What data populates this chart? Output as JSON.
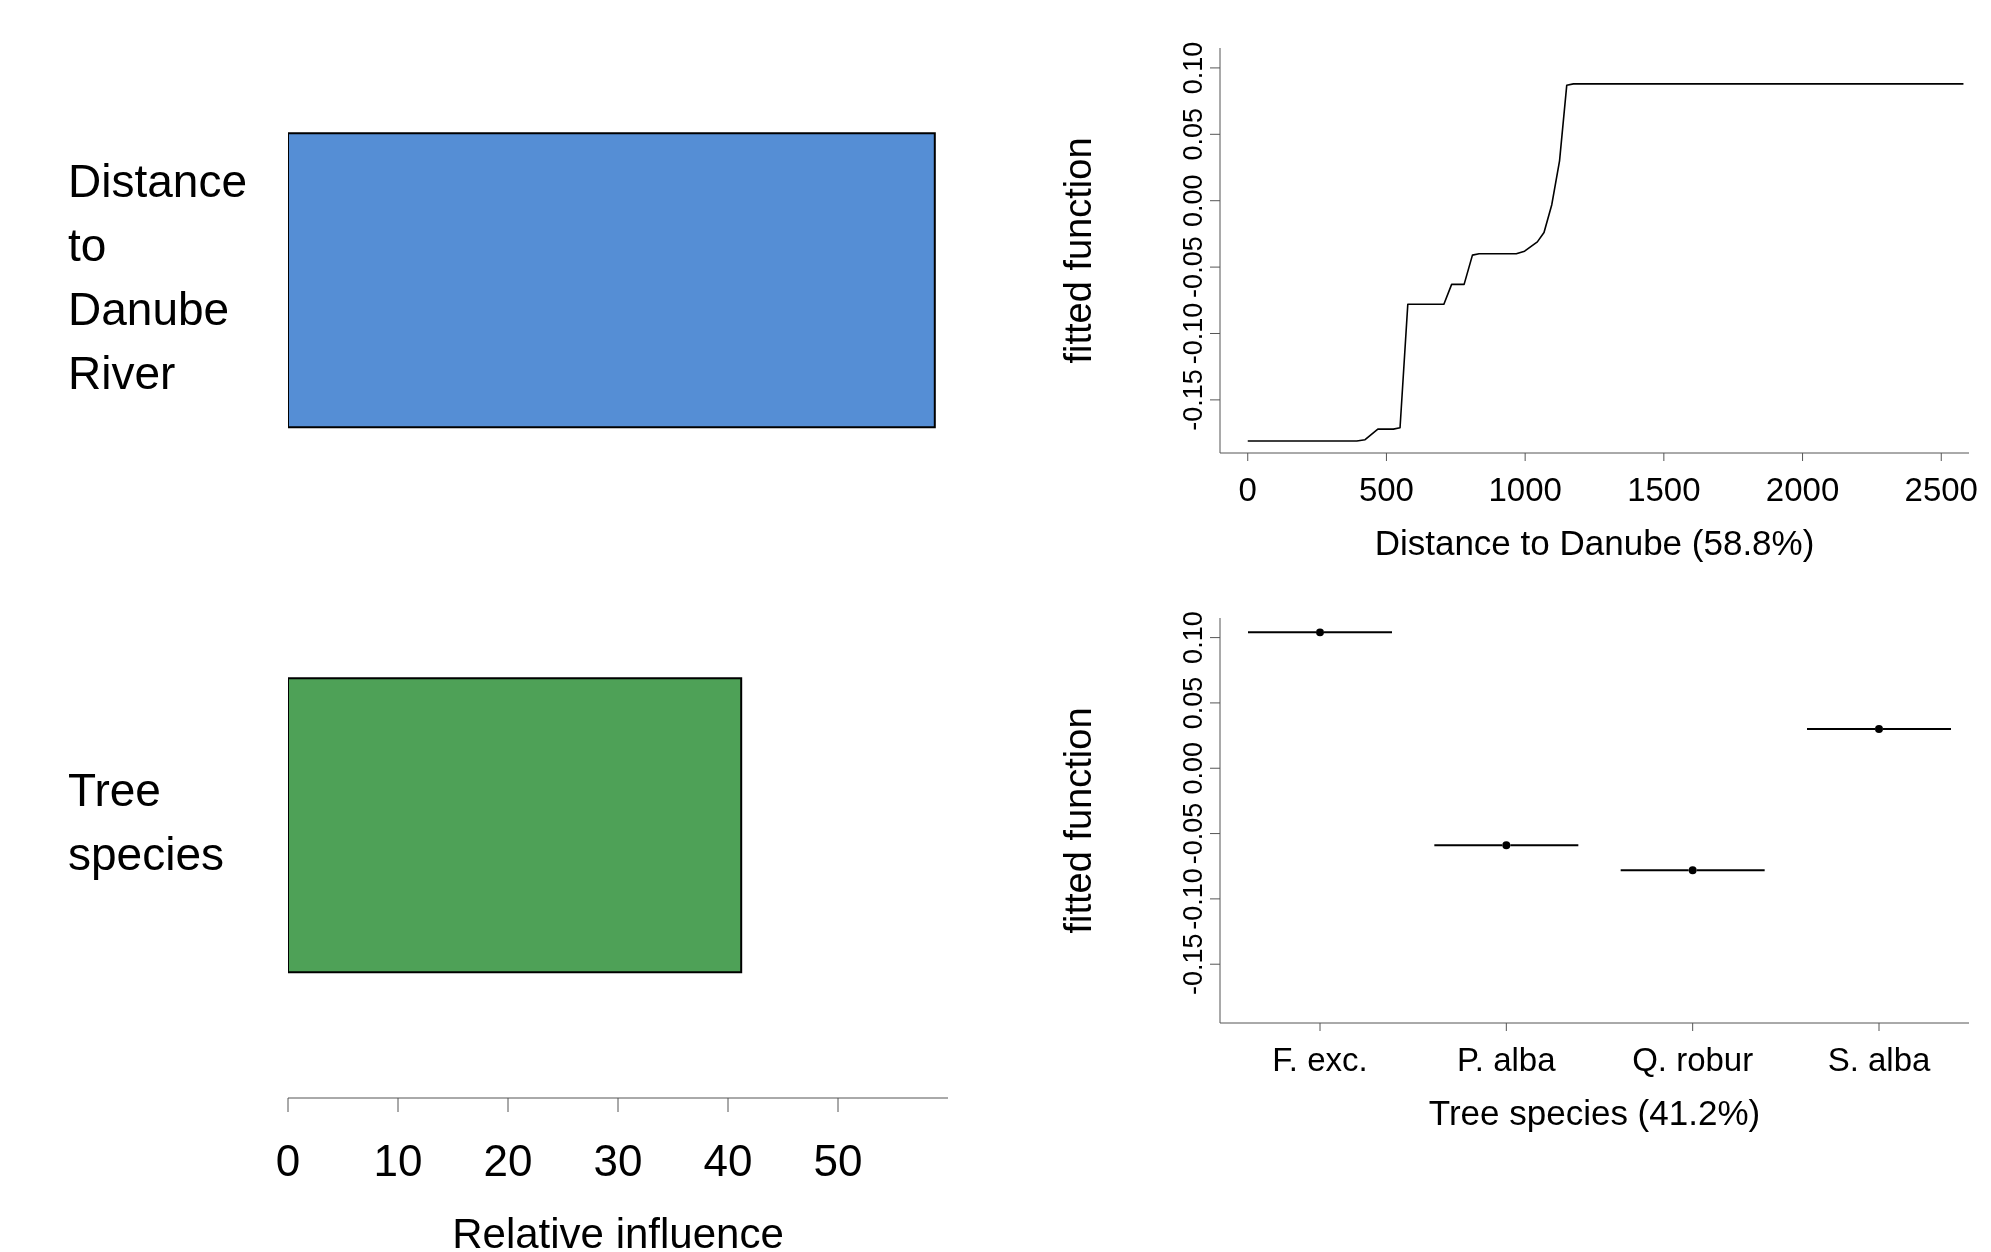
{
  "chart_data": [
    {
      "type": "bar",
      "orientation": "horizontal",
      "categories": [
        "Distance to Danube River",
        "Tree species"
      ],
      "values": [
        58.8,
        41.2
      ],
      "colors": [
        "#558ed5",
        "#4ea157"
      ],
      "xlim": [
        0,
        60
      ],
      "xticks": [
        0,
        10,
        20,
        30,
        40,
        50
      ],
      "xlabel": "Relative influence"
    },
    {
      "type": "line",
      "xlabel": "Distance to Danube  (58.8%)",
      "ylabel": "fitted function",
      "color": "#000000",
      "x": [
        0,
        393,
        423,
        469,
        525,
        549,
        577,
        633,
        707,
        735,
        780,
        810,
        834,
        968,
        998,
        1044,
        1068,
        1096,
        1124,
        1150,
        1174,
        2580
      ],
      "values": [
        -0.181,
        -0.181,
        -0.18,
        -0.172,
        -0.172,
        -0.171,
        -0.078,
        -0.078,
        -0.078,
        -0.063,
        -0.063,
        -0.041,
        -0.04,
        -0.04,
        -0.038,
        -0.031,
        -0.024,
        -0.003,
        0.03,
        0.087,
        0.088,
        0.088
      ],
      "xlim": [
        -100,
        2600
      ],
      "xticks": [
        0,
        500,
        1000,
        1500,
        2000,
        2500
      ],
      "ylim": [
        -0.19,
        0.115
      ],
      "yticks": [
        {
          "value": -0.15,
          "label": "-0.15"
        },
        {
          "value": -0.1,
          "label": "-0.10"
        },
        {
          "value": -0.05,
          "label": "-0.05"
        },
        {
          "value": 0,
          "label": "0.00"
        },
        {
          "value": 0.05,
          "label": "0.05"
        },
        {
          "value": 0.1,
          "label": "0.10"
        }
      ]
    },
    {
      "type": "scatter",
      "xlabel": "Tree species  (41.2%)",
      "ylabel": "fitted function",
      "color": "#000000",
      "categories": [
        "F. exc.",
        "P. alba",
        "Q. robur",
        "S. alba"
      ],
      "values": [
        0.104,
        -0.059,
        -0.078,
        0.03
      ],
      "ylim": [
        -0.195,
        0.115
      ],
      "yticks": [
        {
          "value": -0.15,
          "label": "-0.15"
        },
        {
          "value": -0.1,
          "label": "-0.10"
        },
        {
          "value": -0.05,
          "label": "-0.05"
        },
        {
          "value": 0,
          "label": "0.00"
        },
        {
          "value": 0.05,
          "label": "0.05"
        },
        {
          "value": 0.1,
          "label": "0.10"
        }
      ]
    }
  ]
}
